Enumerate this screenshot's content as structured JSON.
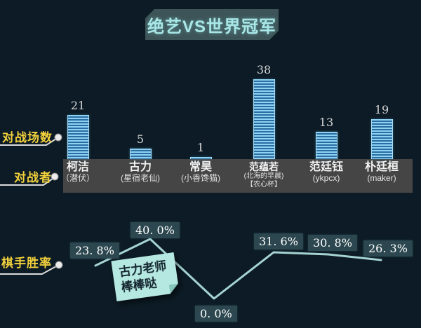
{
  "title": "绝艺VS世界冠军",
  "row_labels": {
    "matches": "对战场数",
    "opponents": "对战者",
    "win_rate": "棋手胜率"
  },
  "opponents": [
    {
      "name": "柯洁",
      "sub1": "（潜伏）"
    },
    {
      "name": "古力",
      "sub1": "(星宿老仙)"
    },
    {
      "name": "常昊",
      "sub1": "(小香馋猫)"
    },
    {
      "name": "范蕴若",
      "sub1": "(北海的早晨)",
      "sub2": "【农心杯】"
    },
    {
      "name": "范廷钰",
      "sub1": "(ykpcx)"
    },
    {
      "name": "朴廷桓",
      "sub1": "(maker)"
    }
  ],
  "matches": [
    "21",
    "5",
    "1",
    "38",
    "13",
    "19"
  ],
  "win_rate_labels": [
    "23. 8%",
    "40. 0%",
    "0. 0%",
    "31. 6%",
    "30. 8%",
    "26. 3%"
  ],
  "annotation": {
    "line1": "古力老师",
    "line2": "棒棒哒"
  },
  "colors": {
    "background": "#0c1b25",
    "title_banner_bg": "#3d5458",
    "title_text": "#a9e7e7",
    "accent_yellow": "#f2d13c",
    "bar_stripe_light": "#8ed2f4",
    "bar_stripe_dark": "#2b6da0",
    "opponents_band": "#454545",
    "rate_box_bg": "#2c474f",
    "winrate_line": "#a5d3d2",
    "note_bg": "#b5e8e1"
  },
  "chart_data": [
    {
      "type": "bar",
      "title": "对战场数",
      "categories": [
        "柯洁",
        "古力",
        "常昊",
        "范蕴若",
        "范廷钰",
        "朴廷桓"
      ],
      "values": [
        21,
        5,
        1,
        38,
        13,
        19
      ],
      "xlabel": "对战者",
      "ylabel": "对战场数",
      "ylim": [
        0,
        40
      ],
      "grid": false,
      "legend": "none"
    },
    {
      "type": "line",
      "title": "棋手胜率",
      "categories": [
        "柯洁",
        "古力",
        "常昊",
        "范蕴若",
        "范廷钰",
        "朴廷桓"
      ],
      "values": [
        23.8,
        40.0,
        0.0,
        31.6,
        30.8,
        26.3
      ],
      "unit": "%",
      "ylim": [
        0,
        40
      ],
      "grid": false,
      "legend": "none",
      "annotation": "古力老师棒棒哒"
    }
  ]
}
